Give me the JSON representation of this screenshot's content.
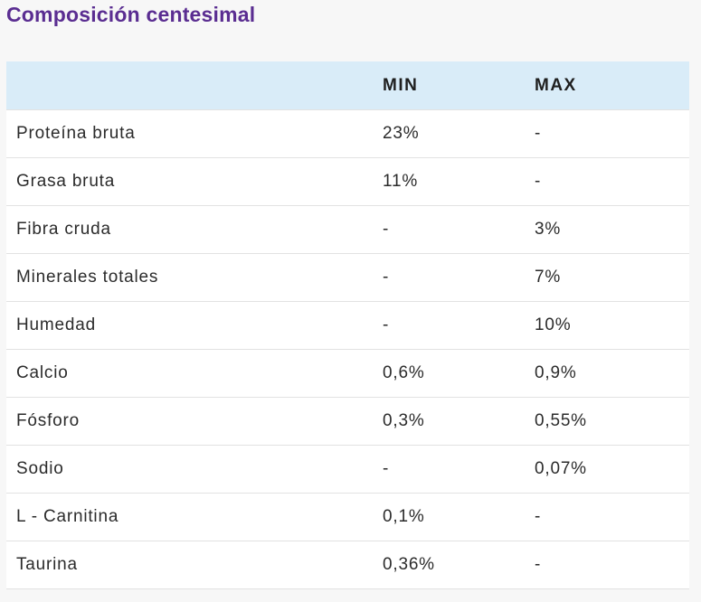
{
  "title": "Composición centesimal",
  "table": {
    "headers": [
      "",
      "MIN",
      "MAX"
    ],
    "rows": [
      {
        "name": "Proteína bruta",
        "min": "23%",
        "max": "-"
      },
      {
        "name": "Grasa bruta",
        "min": "11%",
        "max": "-"
      },
      {
        "name": "Fibra cruda",
        "min": "-",
        "max": "3%"
      },
      {
        "name": "Minerales totales",
        "min": "-",
        "max": "7%"
      },
      {
        "name": "Humedad",
        "min": "-",
        "max": "10%"
      },
      {
        "name": "Calcio",
        "min": "0,6%",
        "max": "0,9%"
      },
      {
        "name": "Fósforo",
        "min": "0,3%",
        "max": "0,55%"
      },
      {
        "name": "Sodio",
        "min": "-",
        "max": "0,07%"
      },
      {
        "name": "L - Carnitina",
        "min": "0,1%",
        "max": "-"
      },
      {
        "name": "Taurina",
        "min": "0,36%",
        "max": "-"
      }
    ]
  },
  "colors": {
    "title": "#5a2d91",
    "header_bg": "#d9ecf8",
    "page_bg": "#f7f7f7"
  }
}
